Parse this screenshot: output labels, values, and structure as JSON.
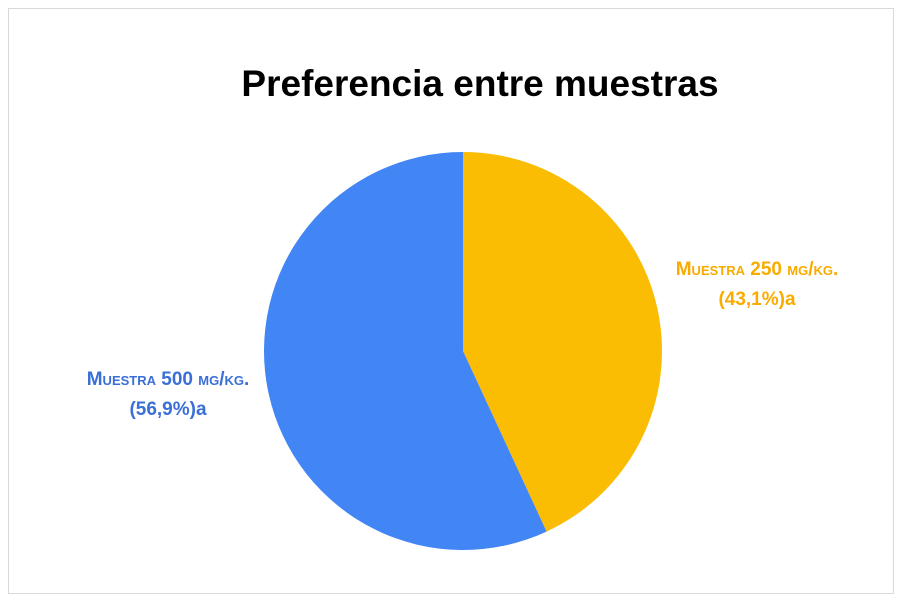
{
  "chart_data": {
    "type": "pie",
    "title": "Preferencia entre muestras",
    "categories": [
      "Muestra 250 mg/kg.",
      "Muestra 500 mg/kg."
    ],
    "values": [
      43.1,
      56.9
    ],
    "value_labels": [
      "(43,1%)a",
      "(56,9%)a"
    ],
    "colors": [
      "#fbbc04",
      "#4285f4"
    ],
    "label_colors": [
      "#f9ab00",
      "#3a6fd8"
    ]
  }
}
